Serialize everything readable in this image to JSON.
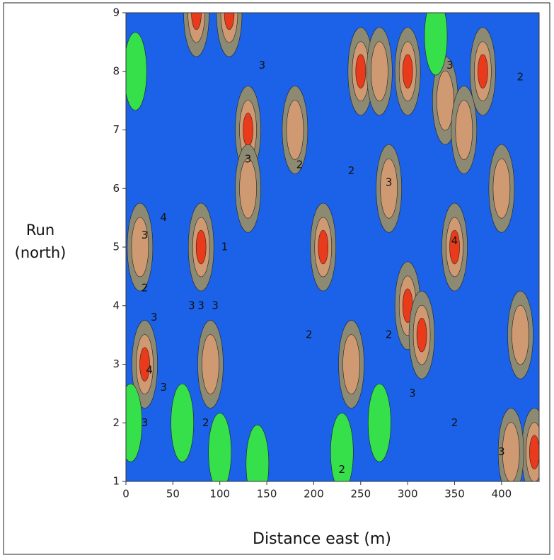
{
  "chart_data": {
    "type": "contour",
    "xlabel": "Distance east (m)",
    "ylabel": [
      "Run",
      "(north)"
    ],
    "xlim": [
      0,
      440
    ],
    "ylim": [
      1,
      9
    ],
    "xticks": [
      0,
      50,
      100,
      150,
      200,
      250,
      300,
      350,
      400
    ],
    "yticks": [
      1,
      2,
      3,
      4,
      5,
      6,
      7,
      8,
      9
    ],
    "level_colors": [
      "#36e04a",
      "#1b62e8",
      "#8c8a72",
      "#cf9a72",
      "#ea3a1c"
    ],
    "features": [
      {
        "x": 80,
        "y": 5,
        "level": 4
      },
      {
        "x": 130,
        "y": 7,
        "level": 4
      },
      {
        "x": 210,
        "y": 5,
        "level": 4
      },
      {
        "x": 350,
        "y": 5,
        "level": 4
      },
      {
        "x": 300,
        "y": 8,
        "level": 4
      },
      {
        "x": 250,
        "y": 8,
        "level": 4
      },
      {
        "x": 380,
        "y": 8,
        "level": 4
      },
      {
        "x": 75,
        "y": 9,
        "level": 4
      },
      {
        "x": 110,
        "y": 9,
        "level": 4
      },
      {
        "x": 20,
        "y": 3,
        "level": 4
      },
      {
        "x": 300,
        "y": 4,
        "level": 4
      },
      {
        "x": 315,
        "y": 3.5,
        "level": 4
      },
      {
        "x": 435,
        "y": 1.5,
        "level": 4
      },
      {
        "x": 90,
        "y": 3,
        "level": 3
      },
      {
        "x": 15,
        "y": 5,
        "level": 3
      },
      {
        "x": 240,
        "y": 3,
        "level": 3
      },
      {
        "x": 130,
        "y": 6,
        "level": 3
      },
      {
        "x": 340,
        "y": 7.5,
        "level": 3
      },
      {
        "x": 280,
        "y": 6,
        "level": 3
      },
      {
        "x": 410,
        "y": 1.5,
        "level": 3
      },
      {
        "x": 420,
        "y": 3.5,
        "level": 3
      },
      {
        "x": 270,
        "y": 8,
        "level": 3
      },
      {
        "x": 360,
        "y": 7,
        "level": 3
      },
      {
        "x": 400,
        "y": 6,
        "level": 3
      },
      {
        "x": 180,
        "y": 7,
        "level": 3
      },
      {
        "x": 10,
        "y": 8,
        "level": 1
      },
      {
        "x": 5,
        "y": 2,
        "level": 1
      },
      {
        "x": 140,
        "y": 1.3,
        "level": 1
      },
      {
        "x": 230,
        "y": 1.5,
        "level": 1
      },
      {
        "x": 270,
        "y": 2,
        "level": 1
      },
      {
        "x": 330,
        "y": 8.6,
        "level": 1
      },
      {
        "x": 100,
        "y": 1.5,
        "level": 1
      },
      {
        "x": 60,
        "y": 2,
        "level": 1
      }
    ],
    "contour_labels": [
      {
        "x": 20,
        "y": 5.2,
        "value": 3
      },
      {
        "x": 40,
        "y": 5.5,
        "value": 4
      },
      {
        "x": 20,
        "y": 4.3,
        "value": 2
      },
      {
        "x": 30,
        "y": 3.8,
        "value": 3
      },
      {
        "x": 25,
        "y": 2.9,
        "value": 4
      },
      {
        "x": 40,
        "y": 2.6,
        "value": 3
      },
      {
        "x": 20,
        "y": 2,
        "value": 3
      },
      {
        "x": 70,
        "y": 4,
        "value": 3
      },
      {
        "x": 80,
        "y": 4,
        "value": 3
      },
      {
        "x": 95,
        "y": 4,
        "value": 3
      },
      {
        "x": 85,
        "y": 2,
        "value": 2
      },
      {
        "x": 105,
        "y": 5,
        "value": 1
      },
      {
        "x": 130,
        "y": 6.5,
        "value": 3
      },
      {
        "x": 145,
        "y": 8.1,
        "value": 3
      },
      {
        "x": 185,
        "y": 6.4,
        "value": 2
      },
      {
        "x": 240,
        "y": 6.3,
        "value": 2
      },
      {
        "x": 280,
        "y": 3.5,
        "value": 2
      },
      {
        "x": 280,
        "y": 6.1,
        "value": 3
      },
      {
        "x": 305,
        "y": 2.5,
        "value": 3
      },
      {
        "x": 350,
        "y": 5.1,
        "value": 4
      },
      {
        "x": 345,
        "y": 8.1,
        "value": 3
      },
      {
        "x": 400,
        "y": 1.5,
        "value": 3
      },
      {
        "x": 350,
        "y": 2,
        "value": 2
      },
      {
        "x": 420,
        "y": 7.9,
        "value": 2
      },
      {
        "x": 230,
        "y": 1.2,
        "value": 2
      },
      {
        "x": 195,
        "y": 3.5,
        "value": 2
      }
    ]
  }
}
